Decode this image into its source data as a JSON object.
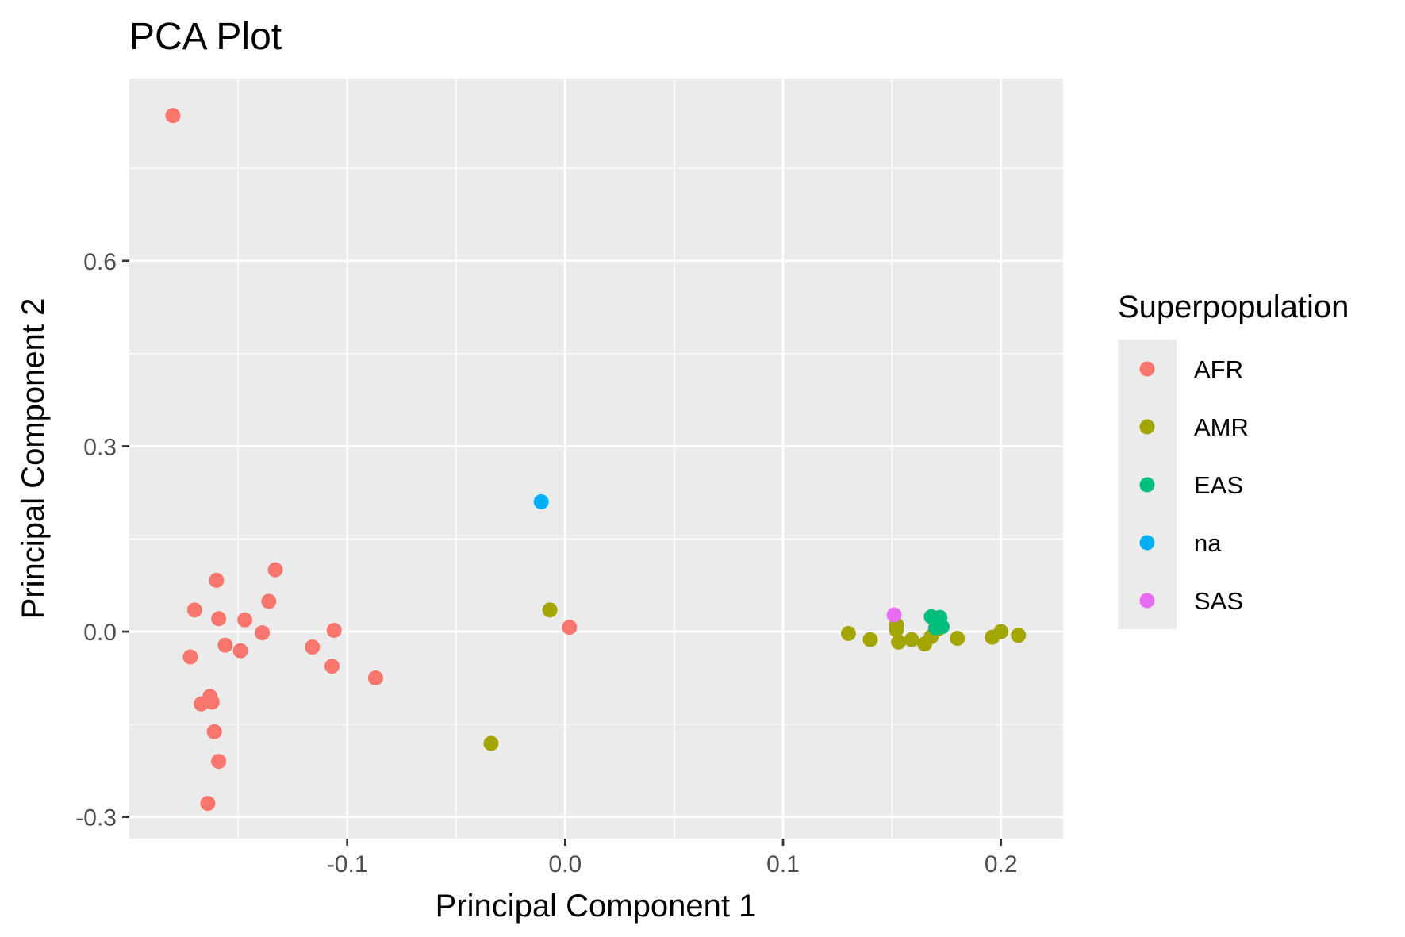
{
  "chart_data": {
    "type": "scatter",
    "title": "PCA Plot",
    "xlabel": "Principal Component 1",
    "ylabel": "Principal Component 2",
    "xlim": [
      -0.2,
      0.2285
    ],
    "ylim": [
      -0.335,
      0.895
    ],
    "x_ticks": [
      -0.1,
      0.0,
      0.1,
      0.2
    ],
    "x_tick_labels": [
      "-0.1",
      "0.0",
      "0.1",
      "0.2"
    ],
    "y_ticks": [
      -0.3,
      0.0,
      0.3,
      0.6
    ],
    "y_tick_labels": [
      "-0.3",
      "0.0",
      "0.3",
      "0.6"
    ],
    "grid": true,
    "legend": {
      "title": "Superpopulation",
      "placement": "right"
    },
    "series": [
      {
        "name": "AFR",
        "color": "#F8766D",
        "points": [
          [
            -0.18,
            0.835
          ],
          [
            -0.16,
            0.083
          ],
          [
            -0.133,
            0.1
          ],
          [
            -0.17,
            0.035
          ],
          [
            -0.159,
            0.021
          ],
          [
            -0.147,
            0.019
          ],
          [
            -0.136,
            0.049
          ],
          [
            -0.139,
            -0.002
          ],
          [
            -0.156,
            -0.022
          ],
          [
            -0.149,
            -0.031
          ],
          [
            -0.172,
            -0.041
          ],
          [
            -0.116,
            -0.025
          ],
          [
            -0.106,
            0.002
          ],
          [
            -0.107,
            -0.056
          ],
          [
            -0.087,
            -0.075
          ],
          [
            -0.163,
            -0.105
          ],
          [
            -0.167,
            -0.117
          ],
          [
            -0.162,
            -0.114
          ],
          [
            -0.161,
            -0.162
          ],
          [
            -0.159,
            -0.21
          ],
          [
            -0.164,
            -0.278
          ],
          [
            0.002,
            0.007
          ]
        ]
      },
      {
        "name": "AMR",
        "color": "#A3A500",
        "points": [
          [
            -0.034,
            -0.181
          ],
          [
            -0.007,
            0.035
          ],
          [
            0.13,
            -0.003
          ],
          [
            0.14,
            -0.013
          ],
          [
            0.152,
            0.011
          ],
          [
            0.152,
            0.003
          ],
          [
            0.153,
            -0.017
          ],
          [
            0.159,
            -0.013
          ],
          [
            0.165,
            -0.02
          ],
          [
            0.168,
            -0.008
          ],
          [
            0.171,
            0.004
          ],
          [
            0.18,
            -0.011
          ],
          [
            0.196,
            -0.009
          ],
          [
            0.2,
            0.0
          ],
          [
            0.208,
            -0.006
          ]
        ]
      },
      {
        "name": "EAS",
        "color": "#00BF7D",
        "points": [
          [
            0.168,
            0.024
          ],
          [
            0.172,
            0.023
          ],
          [
            0.173,
            0.008
          ],
          [
            0.17,
            0.006
          ]
        ]
      },
      {
        "name": "na",
        "color": "#00B0F6",
        "points": [
          [
            -0.011,
            0.21
          ]
        ]
      },
      {
        "name": "SAS",
        "color": "#E76BF3",
        "points": [
          [
            0.151,
            0.027
          ]
        ]
      }
    ]
  }
}
